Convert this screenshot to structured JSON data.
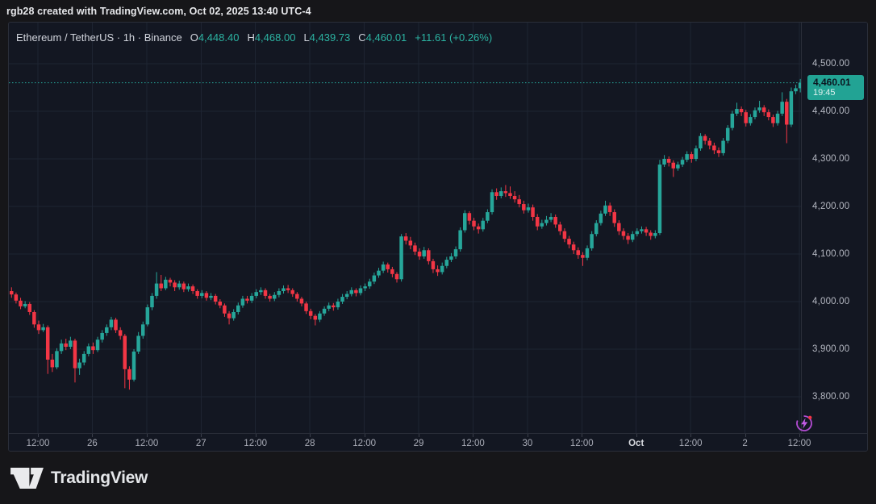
{
  "top_bar": {
    "text": "rgb28 created with TradingView.com, Oct 02, 2025 13:40 UTC-4"
  },
  "legend": {
    "symbol_line": "Ethereum / TetherUS · 1h · Binance",
    "o_label": "O",
    "o_value": "4,448.40",
    "h_label": "H",
    "h_value": "4,468.00",
    "l_label": "L",
    "l_value": "4,439.73",
    "c_label": "C",
    "c_value": "4,460.01",
    "change": "+11.61 (+0.26%)"
  },
  "price_scale": {
    "ticks": [
      {
        "label": "4,500.00",
        "value": 4500
      },
      {
        "label": "4,400.00",
        "value": 4400
      },
      {
        "label": "4,300.00",
        "value": 4300
      },
      {
        "label": "4,200.00",
        "value": 4200
      },
      {
        "label": "4,100.00",
        "value": 4100
      },
      {
        "label": "4,000.00",
        "value": 4000
      },
      {
        "label": "3,900.00",
        "value": 3900
      },
      {
        "label": "3,800.00",
        "value": 3800
      }
    ],
    "badge": {
      "price": "4,460.01",
      "countdown": "19:45"
    }
  },
  "time_scale": {
    "labels": [
      {
        "text": "12:00",
        "bold": false
      },
      {
        "text": "26",
        "bold": false
      },
      {
        "text": "12:00",
        "bold": false
      },
      {
        "text": "27",
        "bold": false
      },
      {
        "text": "12:00",
        "bold": false
      },
      {
        "text": "28",
        "bold": false
      },
      {
        "text": "12:00",
        "bold": false
      },
      {
        "text": "29",
        "bold": false
      },
      {
        "text": "12:00",
        "bold": false
      },
      {
        "text": "30",
        "bold": false
      },
      {
        "text": "12:00",
        "bold": false
      },
      {
        "text": "Oct",
        "bold": true
      },
      {
        "text": "12:00",
        "bold": false
      },
      {
        "text": "2",
        "bold": false
      },
      {
        "text": "12:00",
        "bold": false
      }
    ]
  },
  "branding": {
    "logo_text": "TradingView"
  },
  "colors": {
    "up": "#26a69a",
    "down": "#f23645",
    "grid": "#1e2432",
    "price_line": "#26a69a",
    "badge_bg": "#22a394",
    "accent_text": "#2cb3a2",
    "flash_purple": "#b44cd4",
    "alert_dot": "#f23645"
  },
  "chart_data": {
    "type": "candlestick",
    "title": "Ethereum / TetherUS · 1h · Binance",
    "exchange": "Binance",
    "interval": "1h",
    "last_bar": {
      "open": 4448.4,
      "high": 4468.0,
      "low": 4439.73,
      "close": 4460.01,
      "change": 11.61,
      "change_pct": 0.26
    },
    "last_price": 4460.01,
    "countdown": "19:45",
    "y_axis": {
      "min": 3780,
      "max": 4530,
      "tick_values": [
        4500,
        4400,
        4300,
        4200,
        4100,
        4000,
        3900,
        3800
      ],
      "grid": true
    },
    "x_axis": {
      "tick_labels": [
        "12:00",
        "26",
        "12:00",
        "27",
        "12:00",
        "28",
        "12:00",
        "29",
        "12:00",
        "30",
        "12:00",
        "Oct",
        "12:00",
        "2",
        "12:00"
      ],
      "bars_per_tick": 12
    },
    "candles": [
      [
        4022,
        4030,
        4008,
        4015
      ],
      [
        4015,
        4019,
        3996,
        4002
      ],
      [
        4002,
        4008,
        3984,
        3990
      ],
      [
        3990,
        4001,
        3986,
        3995
      ],
      [
        3995,
        3999,
        3972,
        3978
      ],
      [
        3978,
        3982,
        3945,
        3952
      ],
      [
        3952,
        3960,
        3932,
        3940
      ],
      [
        3940,
        3953,
        3936,
        3946
      ],
      [
        3946,
        3950,
        3848,
        3878
      ],
      [
        3878,
        3890,
        3852,
        3862
      ],
      [
        3862,
        3902,
        3858,
        3896
      ],
      [
        3896,
        3920,
        3890,
        3912
      ],
      [
        3912,
        3922,
        3898,
        3905
      ],
      [
        3905,
        3926,
        3900,
        3918
      ],
      [
        3918,
        3922,
        3830,
        3860
      ],
      [
        3860,
        3880,
        3846,
        3872
      ],
      [
        3872,
        3896,
        3866,
        3890
      ],
      [
        3890,
        3912,
        3885,
        3906
      ],
      [
        3906,
        3914,
        3890,
        3898
      ],
      [
        3898,
        3926,
        3894,
        3920
      ],
      [
        3920,
        3940,
        3914,
        3934
      ],
      [
        3934,
        3952,
        3928,
        3946
      ],
      [
        3946,
        3968,
        3940,
        3962
      ],
      [
        3962,
        3966,
        3934,
        3940
      ],
      [
        3940,
        3946,
        3920,
        3928
      ],
      [
        3928,
        3932,
        3818,
        3858
      ],
      [
        3858,
        3864,
        3815,
        3836
      ],
      [
        3836,
        3900,
        3832,
        3895
      ],
      [
        3895,
        3936,
        3890,
        3928
      ],
      [
        3928,
        3958,
        3922,
        3952
      ],
      [
        3952,
        3994,
        3948,
        3988
      ],
      [
        3988,
        4018,
        3982,
        4012
      ],
      [
        4012,
        4062,
        4006,
        4038
      ],
      [
        4038,
        4056,
        4022,
        4028
      ],
      [
        4028,
        4052,
        4024,
        4046
      ],
      [
        4046,
        4050,
        4032,
        4040
      ],
      [
        4040,
        4045,
        4022,
        4030
      ],
      [
        4030,
        4044,
        4025,
        4038
      ],
      [
        4038,
        4042,
        4020,
        4026
      ],
      [
        4026,
        4038,
        4021,
        4032
      ],
      [
        4032,
        4036,
        4016,
        4022
      ],
      [
        4022,
        4026,
        4006,
        4012
      ],
      [
        4012,
        4024,
        4007,
        4018
      ],
      [
        4018,
        4022,
        4002,
        4008
      ],
      [
        4008,
        4018,
        4003,
        4012
      ],
      [
        4012,
        4016,
        3994,
        4000
      ],
      [
        4000,
        4005,
        3986,
        3992
      ],
      [
        3992,
        3996,
        3968,
        3975
      ],
      [
        3975,
        3980,
        3952,
        3965
      ],
      [
        3965,
        3984,
        3960,
        3978
      ],
      [
        3978,
        3998,
        3973,
        3992
      ],
      [
        3992,
        4012,
        3987,
        4006
      ],
      [
        4006,
        4012,
        3996,
        4002
      ],
      [
        4002,
        4018,
        3997,
        4012
      ],
      [
        4012,
        4026,
        4007,
        4020
      ],
      [
        4020,
        4030,
        4014,
        4024
      ],
      [
        4024,
        4028,
        4006,
        4012
      ],
      [
        4012,
        4016,
        4000,
        4006
      ],
      [
        4006,
        4020,
        4001,
        4014
      ],
      [
        4014,
        4028,
        4009,
        4022
      ],
      [
        4022,
        4034,
        4017,
        4028
      ],
      [
        4028,
        4035,
        4018,
        4024
      ],
      [
        4024,
        4028,
        4010,
        4016
      ],
      [
        4016,
        4020,
        4000,
        4006
      ],
      [
        4006,
        4010,
        3990,
        3996
      ],
      [
        3996,
        4000,
        3974,
        3980
      ],
      [
        3980,
        3985,
        3963,
        3970
      ],
      [
        3970,
        3974,
        3950,
        3962
      ],
      [
        3962,
        3980,
        3957,
        3975
      ],
      [
        3975,
        3990,
        3970,
        3985
      ],
      [
        3985,
        3998,
        3980,
        3992
      ],
      [
        3992,
        3997,
        3981,
        3988
      ],
      [
        3988,
        4006,
        3983,
        4000
      ],
      [
        4000,
        4016,
        3995,
        4010
      ],
      [
        4010,
        4022,
        4005,
        4016
      ],
      [
        4016,
        4030,
        4011,
        4024
      ],
      [
        4024,
        4028,
        4011,
        4018
      ],
      [
        4018,
        4034,
        4013,
        4028
      ],
      [
        4028,
        4038,
        4022,
        4032
      ],
      [
        4032,
        4048,
        4027,
        4042
      ],
      [
        4042,
        4061,
        4037,
        4055
      ],
      [
        4055,
        4071,
        4050,
        4065
      ],
      [
        4065,
        4084,
        4060,
        4078
      ],
      [
        4078,
        4082,
        4061,
        4068
      ],
      [
        4068,
        4073,
        4051,
        4058
      ],
      [
        4058,
        4062,
        4040,
        4047
      ],
      [
        4047,
        4142,
        4042,
        4137
      ],
      [
        4137,
        4144,
        4120,
        4128
      ],
      [
        4128,
        4136,
        4110,
        4118
      ],
      [
        4118,
        4124,
        4098,
        4105
      ],
      [
        4105,
        4112,
        4088,
        4095
      ],
      [
        4095,
        4115,
        4090,
        4108
      ],
      [
        4108,
        4112,
        4078,
        4085
      ],
      [
        4085,
        4090,
        4060,
        4068
      ],
      [
        4068,
        4076,
        4054,
        4062
      ],
      [
        4062,
        4082,
        4057,
        4075
      ],
      [
        4075,
        4094,
        4070,
        4088
      ],
      [
        4088,
        4102,
        4083,
        4095
      ],
      [
        4095,
        4116,
        4090,
        4110
      ],
      [
        4110,
        4156,
        4105,
        4150
      ],
      [
        4150,
        4192,
        4145,
        4186
      ],
      [
        4186,
        4190,
        4162,
        4170
      ],
      [
        4170,
        4176,
        4150,
        4158
      ],
      [
        4158,
        4164,
        4143,
        4152
      ],
      [
        4152,
        4176,
        4147,
        4170
      ],
      [
        4170,
        4194,
        4165,
        4188
      ],
      [
        4188,
        4236,
        4183,
        4230
      ],
      [
        4230,
        4238,
        4214,
        4222
      ],
      [
        4222,
        4240,
        4217,
        4232
      ],
      [
        4232,
        4245,
        4220,
        4228
      ],
      [
        4228,
        4242,
        4216,
        4222
      ],
      [
        4222,
        4232,
        4208,
        4215
      ],
      [
        4215,
        4224,
        4198,
        4205
      ],
      [
        4205,
        4212,
        4185,
        4192
      ],
      [
        4192,
        4206,
        4187,
        4198
      ],
      [
        4198,
        4204,
        4170,
        4178
      ],
      [
        4178,
        4184,
        4150,
        4158
      ],
      [
        4158,
        4172,
        4153,
        4165
      ],
      [
        4165,
        4180,
        4160,
        4172
      ],
      [
        4172,
        4186,
        4167,
        4178
      ],
      [
        4178,
        4183,
        4155,
        4162
      ],
      [
        4162,
        4168,
        4140,
        4148
      ],
      [
        4148,
        4154,
        4125,
        4132
      ],
      [
        4132,
        4138,
        4112,
        4120
      ],
      [
        4120,
        4126,
        4100,
        4108
      ],
      [
        4108,
        4114,
        4090,
        4098
      ],
      [
        4098,
        4104,
        4075,
        4092
      ],
      [
        4092,
        4118,
        4087,
        4112
      ],
      [
        4112,
        4148,
        4107,
        4142
      ],
      [
        4142,
        4171,
        4137,
        4165
      ],
      [
        4165,
        4191,
        4160,
        4185
      ],
      [
        4185,
        4212,
        4180,
        4202
      ],
      [
        4202,
        4208,
        4180,
        4188
      ],
      [
        4188,
        4194,
        4157,
        4165
      ],
      [
        4165,
        4171,
        4140,
        4148
      ],
      [
        4148,
        4154,
        4130,
        4138
      ],
      [
        4138,
        4144,
        4121,
        4130
      ],
      [
        4130,
        4148,
        4125,
        4142
      ],
      [
        4142,
        4154,
        4137,
        4148
      ],
      [
        4148,
        4158,
        4143,
        4152
      ],
      [
        4152,
        4157,
        4138,
        4145
      ],
      [
        4145,
        4150,
        4130,
        4138
      ],
      [
        4138,
        4150,
        4133,
        4144
      ],
      [
        4144,
        4298,
        4140,
        4288
      ],
      [
        4288,
        4308,
        4283,
        4300
      ],
      [
        4300,
        4305,
        4284,
        4292
      ],
      [
        4292,
        4297,
        4262,
        4280
      ],
      [
        4280,
        4294,
        4275,
        4288
      ],
      [
        4288,
        4304,
        4283,
        4298
      ],
      [
        4298,
        4316,
        4293,
        4310
      ],
      [
        4310,
        4315,
        4292,
        4300
      ],
      [
        4300,
        4328,
        4295,
        4322
      ],
      [
        4322,
        4354,
        4317,
        4348
      ],
      [
        4348,
        4352,
        4330,
        4338
      ],
      [
        4338,
        4344,
        4320,
        4328
      ],
      [
        4328,
        4334,
        4310,
        4318
      ],
      [
        4318,
        4324,
        4304,
        4312
      ],
      [
        4312,
        4344,
        4307,
        4338
      ],
      [
        4338,
        4371,
        4333,
        4365
      ],
      [
        4365,
        4401,
        4360,
        4395
      ],
      [
        4395,
        4418,
        4390,
        4405
      ],
      [
        4405,
        4410,
        4390,
        4398
      ],
      [
        4398,
        4403,
        4368,
        4375
      ],
      [
        4375,
        4394,
        4370,
        4388
      ],
      [
        4388,
        4408,
        4383,
        4402
      ],
      [
        4402,
        4422,
        4397,
        4408
      ],
      [
        4408,
        4413,
        4390,
        4398
      ],
      [
        4398,
        4404,
        4381,
        4388
      ],
      [
        4388,
        4393,
        4367,
        4375
      ],
      [
        4375,
        4401,
        4370,
        4395
      ],
      [
        4395,
        4440,
        4390,
        4420
      ],
      [
        4420,
        4426,
        4333,
        4372
      ],
      [
        4372,
        4450,
        4367,
        4442
      ],
      [
        4442,
        4456,
        4436,
        4448.4
      ],
      [
        4448.4,
        4468,
        4439.73,
        4460.01
      ]
    ]
  }
}
